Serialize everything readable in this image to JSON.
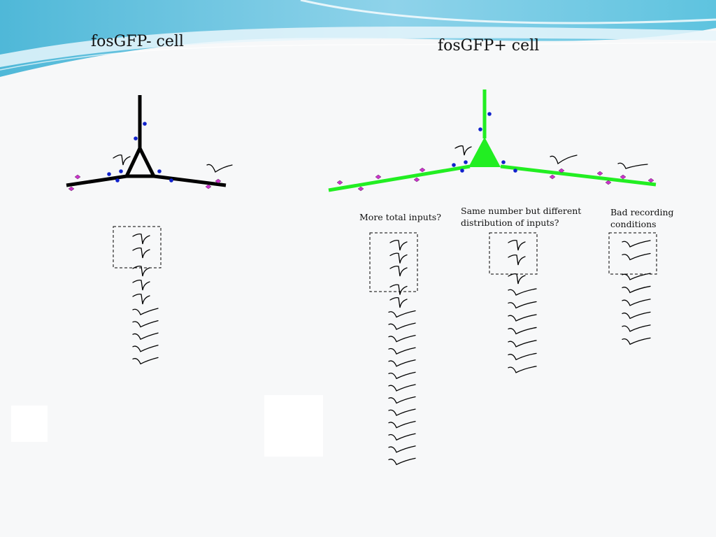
{
  "slide": {
    "title_left": "fosGFP- cell",
    "title_right": "fosGFP+ cell"
  },
  "hypotheses": [
    {
      "lines": [
        "More total inputs?"
      ]
    },
    {
      "lines": [
        "Same number but different",
        "distribution of inputs?"
      ]
    },
    {
      "lines": [
        "Bad recording",
        "conditions"
      ]
    }
  ],
  "neurons": [
    {
      "label": "fosGFP-",
      "color": "#000000"
    },
    {
      "label": "fosGFP+",
      "color": "#22ee22"
    }
  ],
  "synapse_colors": {
    "proximal": "#1122cc",
    "distal": "#cc33cc"
  },
  "trace_columns": [
    {
      "label": "fosGFP-",
      "sharp_traces": 5,
      "slow_traces": 5,
      "boxed": 2
    },
    {
      "label": "More total inputs?",
      "sharp_traces": 5,
      "slow_traces": 13,
      "boxed": 3
    },
    {
      "label": "Same number but different distribution of inputs?",
      "sharp_traces": 3,
      "slow_traces": 7,
      "boxed": 2
    },
    {
      "label": "Bad recording conditions",
      "sharp_traces": 0,
      "slow_traces": 8,
      "boxed": 2
    }
  ]
}
